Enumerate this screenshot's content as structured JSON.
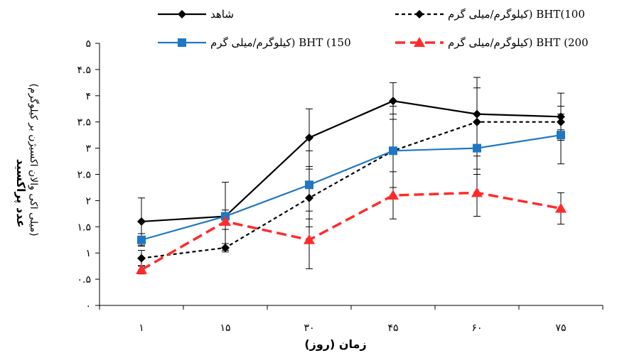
{
  "chart_data": {
    "type": "line",
    "x": [
      "1",
      "15",
      "30",
      "45",
      "60",
      "75"
    ],
    "xlabel": "زمان (روز)",
    "ylabel": "عدد پراکسید",
    "ylabel_sub": "(میلی اکی والان اکسیژن بر کیلوگرم)",
    "ylim": [
      0,
      5
    ],
    "yticks": [
      "۰",
      "۰.۵",
      "۱",
      "۱.۵",
      "۲",
      "۲.۵",
      "۳",
      "۳.۵",
      "۴",
      "۴.۵",
      "۵"
    ],
    "ytick_values": [
      0,
      0.5,
      1,
      1.5,
      2,
      2.5,
      3,
      3.5,
      4,
      4.5,
      5
    ],
    "xtick_labels": [
      "۱",
      "۱۵",
      "۳۰",
      "۴۵",
      "۶۰",
      "۷۵"
    ],
    "grid": false,
    "series": [
      {
        "name": "شاهد",
        "values": [
          1.6,
          1.7,
          3.2,
          3.9,
          3.65,
          3.6
        ],
        "errors": [
          0.45,
          0.65,
          0.55,
          0.35,
          0.7,
          0.45
        ],
        "color": "#000000",
        "dash": "solid",
        "marker": "diamond"
      },
      {
        "name": "BHT(100 کیلوگرم/میلی گرم)",
        "values": [
          0.9,
          1.1,
          2.05,
          2.95,
          3.5,
          3.5
        ],
        "errors": [
          0.15,
          0.08,
          0.55,
          0.85,
          0.65,
          0.15
        ],
        "color": "#000000",
        "dash": "dashed",
        "marker": "diamond"
      },
      {
        "name": "BHT (150 کیلوگرم/میلی گرم)",
        "values": [
          1.25,
          1.7,
          2.3,
          2.95,
          3.0,
          3.25
        ],
        "errors": [
          0.12,
          0.12,
          0.65,
          0.7,
          0.5,
          0.55
        ],
        "color": "#1f77c4",
        "dash": "solid",
        "marker": "square"
      },
      {
        "name": "BHT (200 کیلوگرم/میلی گرم)",
        "values": [
          0.68,
          1.6,
          1.25,
          2.1,
          2.15,
          1.85
        ],
        "errors": [
          0.08,
          0.15,
          0.55,
          0.45,
          0.45,
          0.3
        ],
        "color": "#ff2b2b",
        "dash": "dashed",
        "marker": "triangle"
      }
    ],
    "legend": {
      "placement": "top",
      "entries": [
        {
          "series": 0,
          "label": "شاهد"
        },
        {
          "series": 1,
          "label": "کیلوگرم/میلی گرم) BHT(100"
        },
        {
          "series": 2,
          "label": "کیلوگرم/میلی گرم) BHT (150"
        },
        {
          "series": 3,
          "label": "کیلوگرم/میلی گرم) BHT (200"
        }
      ]
    }
  }
}
